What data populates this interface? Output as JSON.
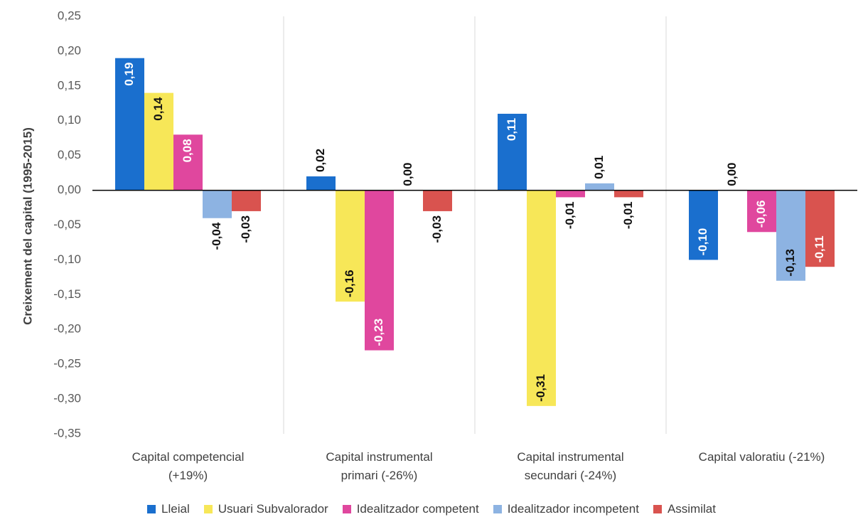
{
  "chart_data": {
    "type": "bar",
    "y_axis_label": "Creixement del capital (1995-2015)",
    "categories": [
      "Capital competencial\n(+19%)",
      "Capital instrumental\nprimari (-26%)",
      "Capital instrumental\nsecundari (-24%)",
      "Capital valoratiu (-21%)"
    ],
    "series": [
      {
        "name": "Lleial",
        "color": "#1a6fce",
        "values": [
          0.19,
          0.02,
          0.11,
          -0.1
        ],
        "value_labels": [
          "0,19",
          "0,02",
          "0,11",
          "-0,10"
        ]
      },
      {
        "name": "Usuari Subvalorador",
        "color": "#f7e758",
        "values": [
          0.14,
          -0.16,
          -0.31,
          0.0
        ],
        "value_labels": [
          "0,14",
          "-0,16",
          "-0,31",
          "0,00"
        ]
      },
      {
        "name": "Idealitzador competent",
        "color": "#e0479e",
        "values": [
          0.08,
          -0.23,
          -0.01,
          -0.06
        ],
        "value_labels": [
          "0,08",
          "-0,23",
          "-0,01",
          "-0,06"
        ]
      },
      {
        "name": "Idealitzador incompetent",
        "color": "#8db3e2",
        "values": [
          -0.04,
          0.0,
          0.01,
          -0.13
        ],
        "value_labels": [
          "-0,04",
          "0,00",
          "0,01",
          "-0,13"
        ]
      },
      {
        "name": "Assimilat",
        "color": "#d9534f",
        "values": [
          -0.03,
          -0.03,
          -0.01,
          -0.11
        ],
        "value_labels": [
          "-0,03",
          "-0,03",
          "-0,01",
          "-0,11"
        ]
      }
    ],
    "ylim": [
      -0.35,
      0.25
    ],
    "yticks": [
      {
        "value": -0.35,
        "label": "-0,35"
      },
      {
        "value": -0.3,
        "label": "-0,30"
      },
      {
        "value": -0.25,
        "label": "-0,25"
      },
      {
        "value": -0.2,
        "label": "-0,20"
      },
      {
        "value": -0.15,
        "label": "-0,15"
      },
      {
        "value": -0.1,
        "label": "-0,10"
      },
      {
        "value": -0.05,
        "label": "-0,05"
      },
      {
        "value": 0,
        "label": "0,00"
      },
      {
        "value": 0.05,
        "label": "0,05"
      },
      {
        "value": 0.1,
        "label": "0,10"
      },
      {
        "value": 0.15,
        "label": "0,15"
      },
      {
        "value": 0.2,
        "label": "0,20"
      },
      {
        "value": 0.25,
        "label": "0,25"
      }
    ],
    "legend": "bottom"
  }
}
